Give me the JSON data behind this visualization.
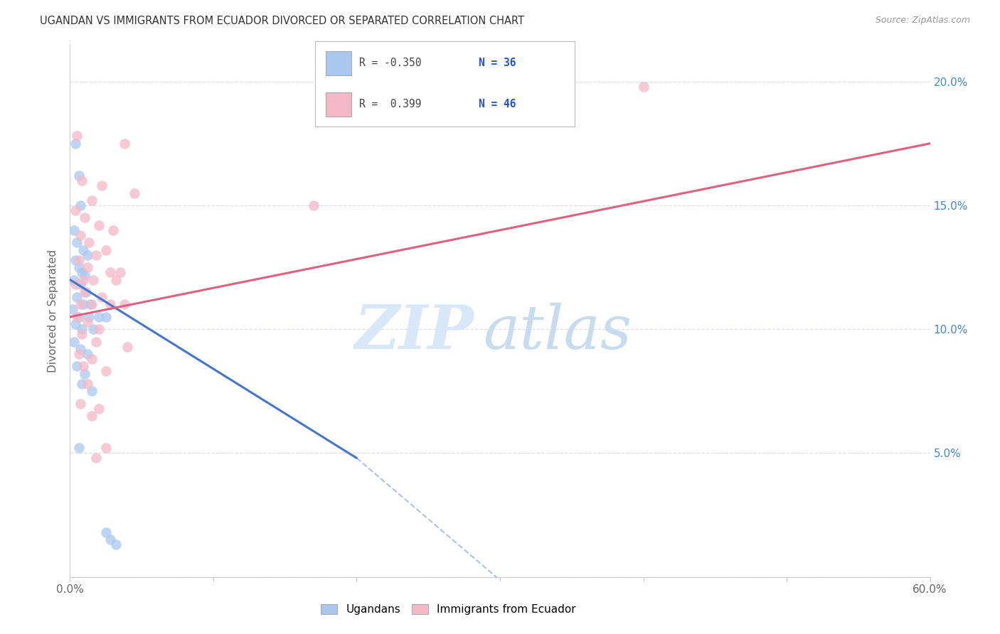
{
  "title": "UGANDAN VS IMMIGRANTS FROM ECUADOR DIVORCED OR SEPARATED CORRELATION CHART",
  "source": "Source: ZipAtlas.com",
  "ylabel": "Divorced or Separated",
  "xlim": [
    0.0,
    60.0
  ],
  "ylim": [
    0.0,
    21.5
  ],
  "yticks": [
    0.0,
    5.0,
    10.0,
    15.0,
    20.0
  ],
  "xticks": [
    0.0,
    10.0,
    20.0,
    30.0,
    40.0,
    50.0,
    60.0
  ],
  "blue_color": "#A8C8F0",
  "pink_color": "#F5B8C8",
  "blue_line_color": "#4477CC",
  "pink_line_color": "#E06080",
  "watermark_zip": "ZIP",
  "watermark_atlas": "atlas",
  "background_color": "#FFFFFF",
  "grid_color": "#DDDDEE",
  "ugandan_points": [
    [
      0.4,
      17.5
    ],
    [
      0.6,
      16.2
    ],
    [
      0.7,
      15.0
    ],
    [
      0.3,
      14.0
    ],
    [
      0.5,
      13.5
    ],
    [
      0.9,
      13.2
    ],
    [
      1.2,
      13.0
    ],
    [
      0.4,
      12.8
    ],
    [
      0.6,
      12.5
    ],
    [
      0.8,
      12.3
    ],
    [
      1.0,
      12.2
    ],
    [
      0.3,
      12.0
    ],
    [
      0.7,
      11.8
    ],
    [
      1.1,
      11.5
    ],
    [
      0.5,
      11.3
    ],
    [
      0.9,
      11.0
    ],
    [
      1.4,
      11.0
    ],
    [
      0.2,
      10.8
    ],
    [
      0.6,
      10.5
    ],
    [
      1.3,
      10.5
    ],
    [
      2.0,
      10.5
    ],
    [
      2.5,
      10.5
    ],
    [
      0.4,
      10.2
    ],
    [
      0.8,
      10.0
    ],
    [
      1.6,
      10.0
    ],
    [
      0.3,
      9.5
    ],
    [
      0.7,
      9.2
    ],
    [
      1.2,
      9.0
    ],
    [
      0.5,
      8.5
    ],
    [
      1.0,
      8.2
    ],
    [
      0.8,
      7.8
    ],
    [
      1.5,
      7.5
    ],
    [
      0.6,
      5.2
    ],
    [
      2.5,
      1.8
    ],
    [
      2.8,
      1.5
    ],
    [
      3.2,
      1.3
    ]
  ],
  "ecuador_points": [
    [
      0.5,
      17.8
    ],
    [
      3.8,
      17.5
    ],
    [
      0.8,
      16.0
    ],
    [
      2.2,
      15.8
    ],
    [
      4.5,
      15.5
    ],
    [
      1.5,
      15.2
    ],
    [
      0.4,
      14.8
    ],
    [
      1.0,
      14.5
    ],
    [
      2.0,
      14.2
    ],
    [
      3.0,
      14.0
    ],
    [
      0.7,
      13.8
    ],
    [
      1.3,
      13.5
    ],
    [
      2.5,
      13.2
    ],
    [
      1.8,
      13.0
    ],
    [
      0.6,
      12.8
    ],
    [
      1.2,
      12.5
    ],
    [
      2.8,
      12.3
    ],
    [
      3.5,
      12.3
    ],
    [
      0.9,
      12.0
    ],
    [
      1.6,
      12.0
    ],
    [
      3.2,
      12.0
    ],
    [
      0.4,
      11.8
    ],
    [
      1.0,
      11.5
    ],
    [
      2.2,
      11.3
    ],
    [
      0.7,
      11.0
    ],
    [
      1.5,
      11.0
    ],
    [
      2.8,
      11.0
    ],
    [
      3.8,
      11.0
    ],
    [
      0.5,
      10.5
    ],
    [
      1.2,
      10.3
    ],
    [
      2.0,
      10.0
    ],
    [
      0.8,
      9.8
    ],
    [
      1.8,
      9.5
    ],
    [
      4.0,
      9.3
    ],
    [
      0.6,
      9.0
    ],
    [
      1.5,
      8.8
    ],
    [
      0.9,
      8.5
    ],
    [
      2.5,
      8.3
    ],
    [
      1.2,
      7.8
    ],
    [
      0.7,
      7.0
    ],
    [
      2.0,
      6.8
    ],
    [
      1.5,
      6.5
    ],
    [
      2.5,
      5.2
    ],
    [
      1.8,
      4.8
    ],
    [
      17.0,
      15.0
    ],
    [
      40.0,
      19.8
    ]
  ]
}
